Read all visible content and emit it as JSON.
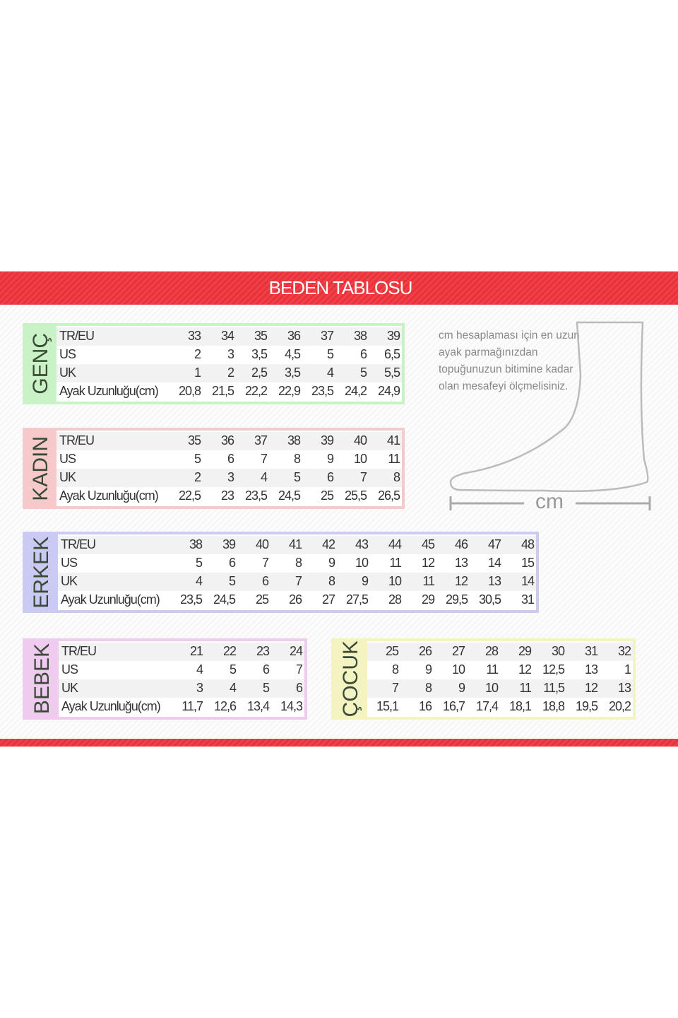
{
  "title": "BEDEN TABLOSU",
  "colors": {
    "header": "#e8323a",
    "genc": "#c9f2c6",
    "kadin": "#f6caca",
    "erkek": "#cacaf4",
    "bebek": "#f0cbf0",
    "cocuk": "#f4f4c2"
  },
  "row_labels": [
    "TR/EU",
    "US",
    "UK",
    "Ayak Uzunluğu(cm)"
  ],
  "tables": [
    {
      "name": "GENÇ",
      "rows": [
        [
          "33",
          "34",
          "35",
          "36",
          "37",
          "38",
          "39"
        ],
        [
          "2",
          "3",
          "3,5",
          "4,5",
          "5",
          "6",
          "6,5"
        ],
        [
          "1",
          "2",
          "2,5",
          "3,5",
          "4",
          "5",
          "5,5"
        ],
        [
          "20,8",
          "21,5",
          "22,2",
          "22,9",
          "23,5",
          "24,2",
          "24,9"
        ]
      ]
    },
    {
      "name": "KADIN",
      "rows": [
        [
          "35",
          "36",
          "37",
          "38",
          "39",
          "40",
          "41"
        ],
        [
          "5",
          "6",
          "7",
          "8",
          "9",
          "10",
          "11"
        ],
        [
          "2",
          "3",
          "4",
          "5",
          "6",
          "7",
          "8"
        ],
        [
          "22,5",
          "23",
          "23,5",
          "24,5",
          "25",
          "25,5",
          "26,5"
        ]
      ]
    },
    {
      "name": "ERKEK",
      "rows": [
        [
          "38",
          "39",
          "40",
          "41",
          "42",
          "43",
          "44",
          "45",
          "46",
          "47",
          "48"
        ],
        [
          "5",
          "6",
          "7",
          "8",
          "9",
          "10",
          "11",
          "12",
          "13",
          "14",
          "15"
        ],
        [
          "4",
          "5",
          "6",
          "7",
          "8",
          "9",
          "10",
          "11",
          "12",
          "13",
          "14"
        ],
        [
          "23,5",
          "24,5",
          "25",
          "26",
          "27",
          "27,5",
          "28",
          "29",
          "29,5",
          "30,5",
          "31"
        ]
      ]
    },
    {
      "name": "BEBEK",
      "rows": [
        [
          "21",
          "22",
          "23",
          "24"
        ],
        [
          "4",
          "5",
          "6",
          "7"
        ],
        [
          "3",
          "4",
          "5",
          "6"
        ],
        [
          "11,7",
          "12,6",
          "13,4",
          "14,3"
        ]
      ]
    },
    {
      "name": "ÇOCUK",
      "rows": [
        [
          "25",
          "26",
          "27",
          "28",
          "29",
          "30",
          "31",
          "32"
        ],
        [
          "8",
          "9",
          "10",
          "11",
          "12",
          "12,5",
          "13",
          "1"
        ],
        [
          "7",
          "8",
          "9",
          "10",
          "11",
          "11,5",
          "12",
          "13"
        ],
        [
          "15,1",
          "16",
          "16,7",
          "17,4",
          "18,1",
          "18,8",
          "19,5",
          "20,2"
        ]
      ]
    }
  ],
  "note": "cm hesaplaması için en uzun ayak parmağınızdan topuğunuzun bitimine kadar olan mesafeyi ölçmelisiniz.",
  "unit_label": "cm",
  "icons": {
    "foot": "foot-outline-icon",
    "ruler": "measure-line-icon"
  }
}
